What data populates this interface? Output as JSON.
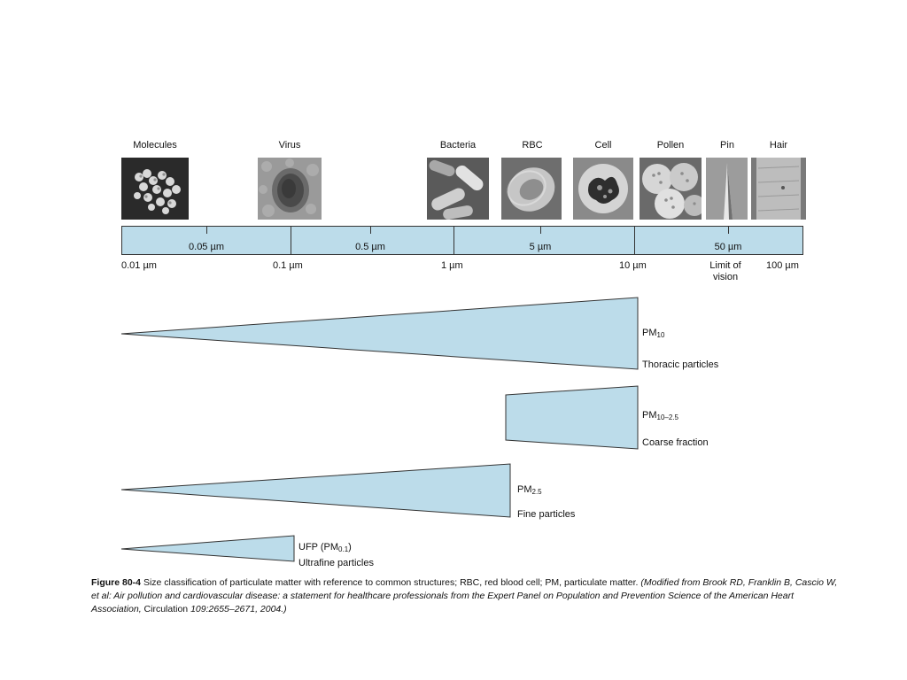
{
  "objects": [
    {
      "label": "Molecules",
      "icon": "molecules-image"
    },
    {
      "label": "Virus",
      "icon": "virus-image"
    },
    {
      "label": "Bacteria",
      "icon": "bacteria-image"
    },
    {
      "label": "RBC",
      "icon": "rbc-image"
    },
    {
      "label": "Cell",
      "icon": "cell-image"
    },
    {
      "label": "Pollen",
      "icon": "pollen-image"
    },
    {
      "label": "Pin",
      "icon": "pin-image"
    },
    {
      "label": "Hair",
      "icon": "hair-image"
    }
  ],
  "scale": {
    "segment_labels": [
      "0.05 µm",
      "0.5 µm",
      "5 µm",
      "50 µm"
    ],
    "boundary_labels": [
      "0.01 µm",
      "0.1 µm",
      "1 µm",
      "10 µm",
      "100 µm"
    ],
    "limit_of_vision": [
      "Limit of",
      "vision"
    ],
    "bar_color": "#bcdcea"
  },
  "particles": [
    {
      "name": "PM",
      "sub": "10",
      "desc": "Thoracic particles"
    },
    {
      "name": "PM",
      "sub": "10–2.5",
      "desc": "Coarse fraction"
    },
    {
      "name": "PM",
      "sub": "2.5",
      "desc": "Fine particles"
    },
    {
      "name": "UFP (PM",
      "sub": "0.1",
      "suffix": ")",
      "desc": "Ultrafine particles"
    }
  ],
  "caption": {
    "label": "Figure 80-4",
    "text": "Size classification of particulate matter with reference to common structures; RBC, red blood cell; PM, particulate matter.",
    "source": "(Modified from Brook RD, Franklin B, Cascio W, et al: Air pollution and cardiovascular disease: a statement for healthcare professionals from the Expert Panel on Population and Prevention Science of the American Heart Association,",
    "journal": "Circulation",
    "journal_rest": "109:2655–2671, 2004.)"
  }
}
